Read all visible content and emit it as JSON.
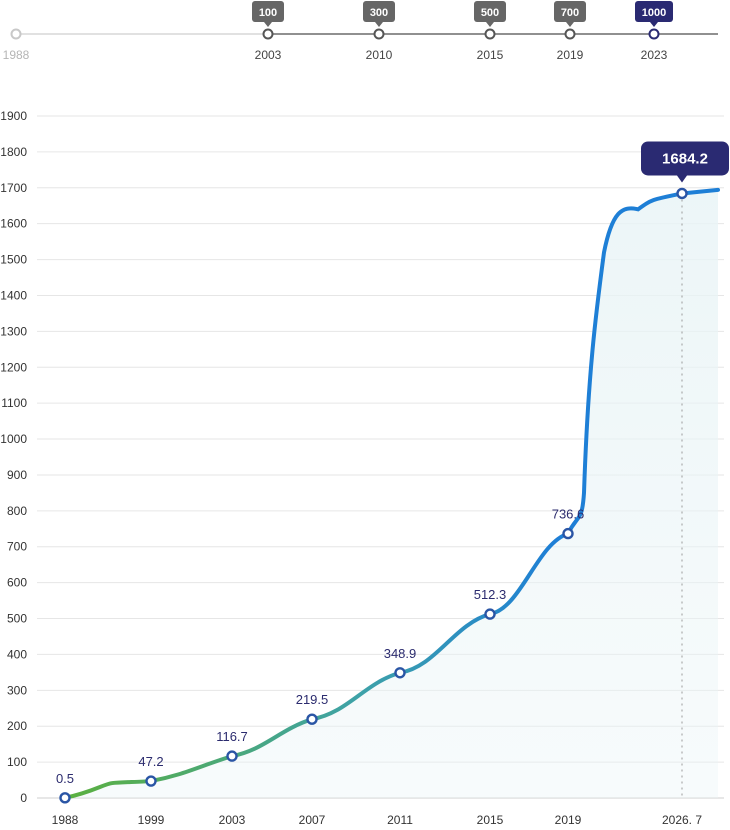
{
  "timeline": {
    "years": [
      "1988",
      "2003",
      "2010",
      "2015",
      "2019",
      "2023"
    ],
    "badges": [
      "",
      "100",
      "300",
      "500",
      "700",
      "1000"
    ],
    "colors": {
      "line": "#555555",
      "badge": "#666666",
      "badge_last": "#2a2a72",
      "first_point": "#c8c8c8"
    }
  },
  "chart_data": {
    "type": "line",
    "categories": [
      "1988",
      "1999",
      "2003",
      "2007",
      "2011",
      "2015",
      "2019",
      "2026. 7"
    ],
    "y_ticks": [
      "0",
      "100",
      "200",
      "300",
      "400",
      "500",
      "600",
      "700",
      "800",
      "900",
      "1000",
      "1100",
      "1200",
      "1300",
      "1400",
      "1500",
      "1600",
      "1700",
      "1800",
      "1900"
    ],
    "ylim": [
      0,
      1900
    ],
    "points": [
      {
        "x": "1988",
        "y": 0.5,
        "label": "0.5"
      },
      {
        "x": "1999",
        "y": 47.2,
        "label": "47.2"
      },
      {
        "x": "2003",
        "y": 116.7,
        "label": "116.7"
      },
      {
        "x": "2007",
        "y": 219.5,
        "label": "219.5"
      },
      {
        "x": "2011",
        "y": 348.9,
        "label": "348.9"
      },
      {
        "x": "2015",
        "y": 512.3,
        "label": "512.3"
      },
      {
        "x": "2019",
        "y": 736.6,
        "label": "736.6"
      },
      {
        "x": "2026. 7",
        "y": 1684.2,
        "label": "1684.2"
      }
    ],
    "highlight": "1684.2",
    "grid": true,
    "colors": {
      "start": "#5bb03f",
      "mid": "#3ea2a8",
      "end": "#1e7fd6",
      "marker": "#2a55a5",
      "highlight_bg": "#2a2a72",
      "guide": "#9a9a9a"
    }
  }
}
